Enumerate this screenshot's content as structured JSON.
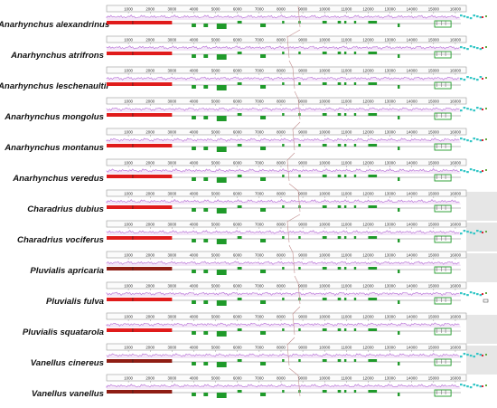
{
  "figure": {
    "ruler_ticks": [
      "1000",
      "2000",
      "3000",
      "4000",
      "5000",
      "6000",
      "7000",
      "8000",
      "9000",
      "10000",
      "11000",
      "12000",
      "13000",
      "14000",
      "15000",
      "16000"
    ],
    "colors": {
      "background": "#ffffff",
      "ruler_frame": "#9a9a9a",
      "similarity_profile": "#b46ad6",
      "similarity_fill": "#f3e6f7",
      "block_red": "#e01b1b",
      "block_dark_red": "#8f1d14",
      "block_green": "#1f9a2a",
      "block_cyan": "#34c6c6",
      "connector": "#c28f8f",
      "side_panel": "#e6e6e6"
    },
    "genomes": [
      {
        "name": "Anarhynchus alexandrinus",
        "red_style": "red",
        "tail": "cyan",
        "panel": false
      },
      {
        "name": "Anarhynchus atrifrons",
        "red_style": "red",
        "tail": "cyan",
        "panel": false
      },
      {
        "name": "Anarhynchus leschenaultii",
        "red_style": "red",
        "tail": "cyan",
        "panel": false
      },
      {
        "name": "Anarhynchus mongolus",
        "red_style": "red",
        "tail": "cyan",
        "panel": false
      },
      {
        "name": "Anarhynchus montanus",
        "red_style": "red",
        "tail": "cyan",
        "panel": false
      },
      {
        "name": "Anarhynchus veredus",
        "red_style": "red",
        "tail": "cyan",
        "panel": false
      },
      {
        "name": "Charadrius dubius",
        "red_style": "red",
        "tail": "none",
        "panel": true
      },
      {
        "name": "Charadrius vociferus",
        "red_style": "red",
        "tail": "cyan",
        "panel": true
      },
      {
        "name": "Pluvialis apricaria",
        "red_style": "darkred",
        "tail": "none",
        "panel": true
      },
      {
        "name": "Pluvialis fulva",
        "red_style": "red",
        "tail": "cyan",
        "panel": false
      },
      {
        "name": "Pluvialis squatarola",
        "red_style": "red",
        "tail": "none",
        "panel": true
      },
      {
        "name": "Vanellus cinereus",
        "red_style": "darkred",
        "tail": "cyan",
        "panel": true
      },
      {
        "name": "Vanellus vanellus",
        "red_style": "darkred",
        "tail": "cyan",
        "panel": false
      }
    ]
  }
}
